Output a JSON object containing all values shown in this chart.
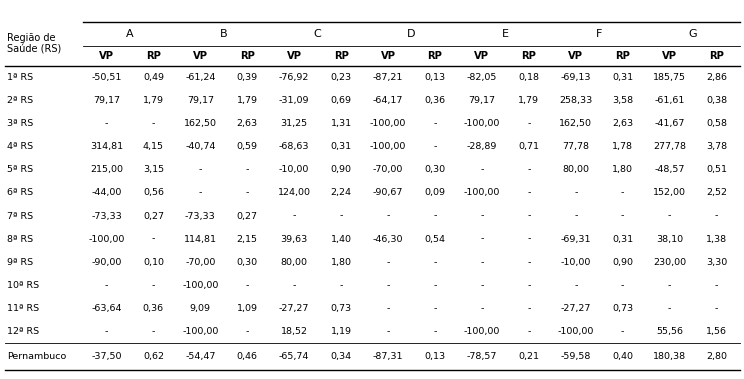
{
  "col_groups": [
    "A",
    "B",
    "C",
    "D",
    "E",
    "F",
    "G"
  ],
  "col_sub": [
    "VP",
    "RP"
  ],
  "row_labels": [
    "1ª RS",
    "2ª RS",
    "3ª RS",
    "4ª RS",
    "5ª RS",
    "6ª RS",
    "7ª RS",
    "8ª RS",
    "9ª RS",
    "10ª RS",
    "11ª RS",
    "12ª RS",
    "Pernambuco"
  ],
  "row_header_line1": "Região de",
  "row_header_line2": "Saúde (RS)",
  "data": [
    [
      "-50,51",
      "0,49",
      "-61,24",
      "0,39",
      "-76,92",
      "0,23",
      "-87,21",
      "0,13",
      "-82,05",
      "0,18",
      "-69,13",
      "0,31",
      "185,75",
      "2,86"
    ],
    [
      "79,17",
      "1,79",
      "79,17",
      "1,79",
      "-31,09",
      "0,69",
      "-64,17",
      "0,36",
      "79,17",
      "1,79",
      "258,33",
      "3,58",
      "-61,61",
      "0,38"
    ],
    [
      "-",
      "-",
      "162,50",
      "2,63",
      "31,25",
      "1,31",
      "-100,00",
      "-",
      "-100,00",
      "-",
      "162,50",
      "2,63",
      "-41,67",
      "0,58"
    ],
    [
      "314,81",
      "4,15",
      "-40,74",
      "0,59",
      "-68,63",
      "0,31",
      "-100,00",
      "-",
      "-28,89",
      "0,71",
      "77,78",
      "1,78",
      "277,78",
      "3,78"
    ],
    [
      "215,00",
      "3,15",
      "-",
      "-",
      "-10,00",
      "0,90",
      "-70,00",
      "0,30",
      "-",
      "-",
      "80,00",
      "1,80",
      "-48,57",
      "0,51"
    ],
    [
      "-44,00",
      "0,56",
      "-",
      "-",
      "124,00",
      "2,24",
      "-90,67",
      "0,09",
      "-100,00",
      "-",
      "-",
      "-",
      "152,00",
      "2,52"
    ],
    [
      "-73,33",
      "0,27",
      "-73,33",
      "0,27",
      "-",
      "-",
      "-",
      "-",
      "-",
      "-",
      "-",
      "-",
      "-",
      "-"
    ],
    [
      "-100,00",
      "-",
      "114,81",
      "2,15",
      "39,63",
      "1,40",
      "-46,30",
      "0,54",
      "-",
      "-",
      "-69,31",
      "0,31",
      "38,10",
      "1,38"
    ],
    [
      "-90,00",
      "0,10",
      "-70,00",
      "0,30",
      "80,00",
      "1,80",
      "-",
      "-",
      "-",
      "-",
      "-10,00",
      "0,90",
      "230,00",
      "3,30"
    ],
    [
      "-",
      "-",
      "-100,00",
      "-",
      "-",
      "-",
      "-",
      "-",
      "-",
      "-",
      "-",
      "-",
      "-",
      "-"
    ],
    [
      "-63,64",
      "0,36",
      "9,09",
      "1,09",
      "-27,27",
      "0,73",
      "-",
      "-",
      "-",
      "-",
      "-27,27",
      "0,73",
      "-",
      "-"
    ],
    [
      "-",
      "-",
      "-100,00",
      "-",
      "18,52",
      "1,19",
      "-",
      "-",
      "-100,00",
      "-",
      "-100,00",
      "-",
      "55,56",
      "1,56"
    ],
    [
      "-37,50",
      "0,62",
      "-54,47",
      "0,46",
      "-65,74",
      "0,34",
      "-87,31",
      "0,13",
      "-78,57",
      "0,21",
      "-59,58",
      "0,40",
      "180,38",
      "2,80"
    ]
  ],
  "bg_color": "#ffffff",
  "text_color": "#000000",
  "line_color": "#000000",
  "font_size": 6.8,
  "header_font_size": 8.0,
  "subheader_font_size": 7.2
}
